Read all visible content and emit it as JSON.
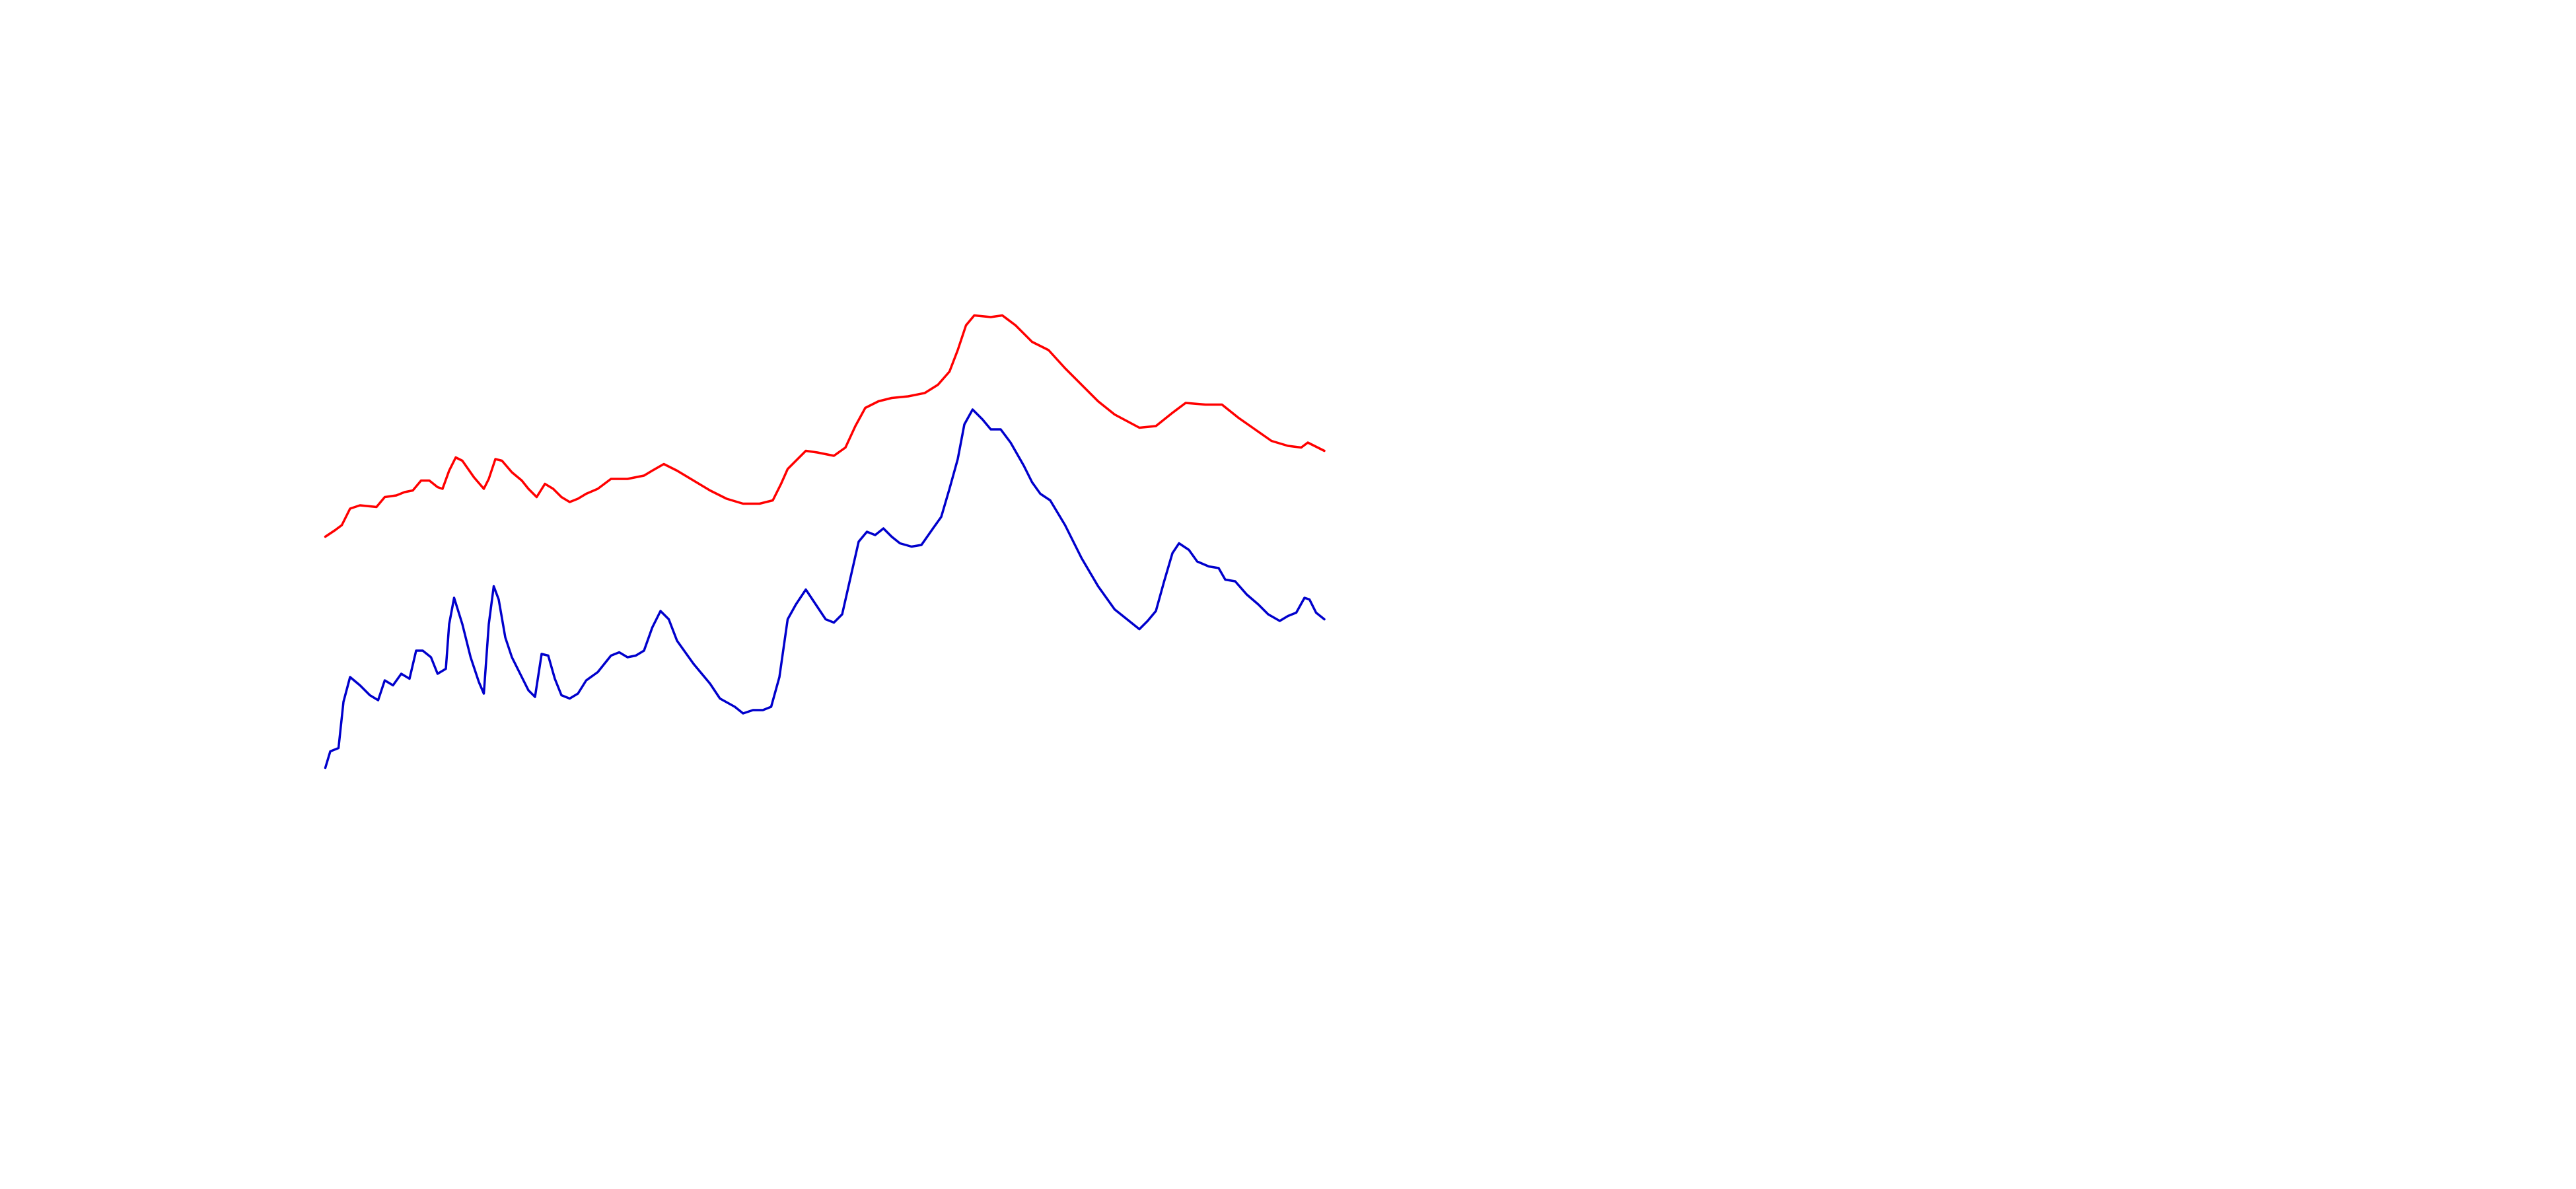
{
  "chart_data": {
    "type": "line",
    "xlim": [
      0,
      1560
    ],
    "ylim": [
      0,
      720
    ],
    "series": [
      {
        "color": "#ff0000",
        "x": [
          197,
          203,
          207,
          212,
          218,
          228,
          233,
          240,
          245,
          250,
          255,
          260,
          265,
          268,
          272,
          276,
          280,
          287,
          293,
          296,
          300,
          304,
          310,
          316,
          320,
          325,
          330,
          335,
          340,
          345,
          350,
          355,
          362,
          370,
          380,
          390,
          395,
          402,
          410,
          420,
          430,
          440,
          450,
          460,
          468,
          473,
          477,
          482,
          488,
          495,
          505,
          512,
          518,
          524,
          532,
          540,
          550,
          560,
          568,
          575,
          580,
          585,
          590,
          600,
          607,
          615,
          625,
          635,
          645,
          655,
          665,
          675,
          690,
          700,
          710,
          718,
          730,
          740,
          750,
          760,
          770,
          780,
          788,
          792,
          796,
          802
        ],
        "values": [
          395,
          399,
          402,
          412,
          414,
          413,
          419,
          420,
          422,
          423,
          429,
          429,
          425,
          424,
          435,
          443,
          441,
          431,
          424,
          430,
          442,
          441,
          434,
          429,
          424,
          419,
          427,
          424,
          419,
          416,
          418,
          421,
          424,
          430,
          430,
          432,
          435,
          439,
          435,
          429,
          423,
          418,
          415,
          415,
          417,
          427,
          436,
          441,
          447,
          446,
          444,
          449,
          462,
          473,
          477,
          479,
          480,
          482,
          487,
          495,
          508,
          523,
          529,
          528,
          529,
          523,
          513,
          508,
          497,
          487,
          477,
          469,
          461,
          462,
          470,
          476,
          475,
          475,
          467,
          460,
          453,
          450,
          449,
          452,
          450,
          447
        ]
      },
      {
        "color": "#0000cc",
        "x": [
          197,
          200,
          205,
          208,
          212,
          218,
          224,
          229,
          233,
          238,
          243,
          248,
          252,
          256,
          261,
          265,
          270,
          272,
          275,
          280,
          285,
          290,
          293,
          296,
          299,
          302,
          306,
          310,
          315,
          320,
          324,
          328,
          332,
          336,
          340,
          345,
          350,
          355,
          362,
          370,
          375,
          380,
          385,
          390,
          395,
          400,
          405,
          410,
          420,
          430,
          436,
          445,
          450,
          456,
          462,
          467,
          472,
          477,
          482,
          488,
          494,
          500,
          505,
          510,
          515,
          520,
          525,
          530,
          535,
          540,
          545,
          552,
          558,
          565,
          570,
          575,
          580,
          584,
          589,
          595,
          600,
          606,
          612,
          620,
          625,
          630,
          636,
          645,
          655,
          665,
          675,
          685,
          690,
          695,
          700,
          705,
          710,
          714,
          720,
          725,
          732,
          738,
          742,
          748,
          755,
          762,
          768,
          775,
          780,
          785,
          790,
          793,
          797,
          802
        ],
        "values": [
          255,
          265,
          267,
          295,
          310,
          305,
          299,
          296,
          308,
          305,
          312,
          309,
          326,
          326,
          322,
          312,
          315,
          342,
          358,
          342,
          322,
          307,
          300,
          342,
          365,
          357,
          334,
          322,
          312,
          302,
          298,
          324,
          323,
          309,
          299,
          297,
          300,
          308,
          313,
          323,
          325,
          322,
          323,
          326,
          340,
          350,
          345,
          332,
          318,
          306,
          297,
          292,
          288,
          290,
          290,
          292,
          310,
          345,
          354,
          363,
          354,
          345,
          343,
          348,
          370,
          392,
          398,
          396,
          400,
          395,
          391,
          389,
          390,
          400,
          407,
          424,
          442,
          463,
          472,
          466,
          460,
          460,
          452,
          438,
          428,
          421,
          417,
          402,
          382,
          365,
          351,
          343,
          339,
          344,
          350,
          368,
          385,
          391,
          387,
          380,
          377,
          376,
          369,
          368,
          360,
          354,
          348,
          344,
          347,
          349,
          358,
          357,
          349,
          345
        ]
      }
    ]
  }
}
